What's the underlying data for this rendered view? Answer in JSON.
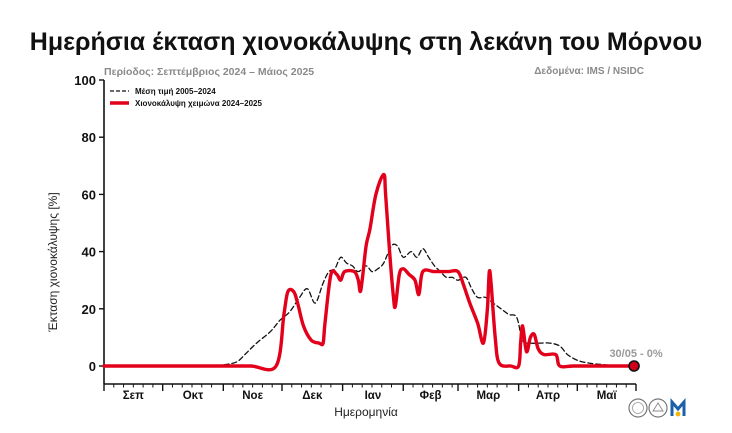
{
  "header": {
    "title": "Ημερήσια έκταση χιονοκάλυψης στη λεκάνη του Μόρνου",
    "period": "Περίοδος: Σεπτέμβριος 2024 – Μάιος 2025",
    "source": "Δεδομένα: IMS / NSIDC"
  },
  "chart_data": {
    "type": "line",
    "title": "Ημερήσια έκταση χιονοκάλυψης στη λεκάνη του Μόρνου",
    "xlabel": "Ημερομηνία",
    "ylabel": "Έκταση χιονοκάλυψης [%]",
    "ylim": [
      0,
      100
    ],
    "yticks": [
      0,
      20,
      40,
      60,
      80,
      100
    ],
    "x_unit": "day index from 1 Sep 2024",
    "xlim": [
      0,
      272
    ],
    "months": [
      {
        "label": "Σεπ",
        "start": 0,
        "end": 30
      },
      {
        "label": "Οκτ",
        "start": 30,
        "end": 61
      },
      {
        "label": "Νοε",
        "start": 61,
        "end": 91
      },
      {
        "label": "Δεκ",
        "start": 91,
        "end": 122
      },
      {
        "label": "Ιαν",
        "start": 122,
        "end": 153
      },
      {
        "label": "Φεβ",
        "start": 153,
        "end": 181
      },
      {
        "label": "Μαρ",
        "start": 181,
        "end": 212
      },
      {
        "label": "Απρ",
        "start": 212,
        "end": 242
      },
      {
        "label": "Μαϊ",
        "start": 242,
        "end": 272
      }
    ],
    "legend_position": "top-left",
    "grid": false,
    "series": [
      {
        "name": "Μέση τιμή 2005–2024",
        "color": "#111111",
        "style": "dashed",
        "points": [
          [
            0,
            0
          ],
          [
            25,
            0
          ],
          [
            40,
            0
          ],
          [
            55,
            0
          ],
          [
            62,
            0.5
          ],
          [
            68,
            1.5
          ],
          [
            72,
            4
          ],
          [
            78,
            8
          ],
          [
            85,
            12
          ],
          [
            90,
            16
          ],
          [
            95,
            19
          ],
          [
            100,
            24
          ],
          [
            104,
            27
          ],
          [
            108,
            22
          ],
          [
            112,
            29
          ],
          [
            115,
            33
          ],
          [
            118,
            34
          ],
          [
            121,
            38
          ],
          [
            124,
            36
          ],
          [
            127,
            35
          ],
          [
            130,
            33
          ],
          [
            134,
            35
          ],
          [
            137,
            33
          ],
          [
            140,
            34
          ],
          [
            143,
            36
          ],
          [
            147,
            42
          ],
          [
            150,
            42
          ],
          [
            153,
            38
          ],
          [
            157,
            40
          ],
          [
            160,
            38
          ],
          [
            163,
            41
          ],
          [
            166,
            38
          ],
          [
            169,
            35
          ],
          [
            172,
            33
          ],
          [
            175,
            31
          ],
          [
            178,
            31
          ],
          [
            181,
            30
          ],
          [
            185,
            31
          ],
          [
            188,
            27
          ],
          [
            191,
            24
          ],
          [
            195,
            24
          ],
          [
            199,
            22
          ],
          [
            203,
            20
          ],
          [
            207,
            18
          ],
          [
            211,
            17
          ],
          [
            214,
            9
          ],
          [
            218,
            8
          ],
          [
            223,
            8
          ],
          [
            228,
            8
          ],
          [
            233,
            7
          ],
          [
            237,
            4
          ],
          [
            242,
            2
          ],
          [
            248,
            1
          ],
          [
            255,
            0.5
          ],
          [
            262,
            0
          ],
          [
            270,
            0
          ]
        ]
      },
      {
        "name": "Χιονοκάλυψη χειμώνα 2024–2025",
        "color": "#e3001b",
        "style": "solid",
        "points": [
          [
            0,
            0
          ],
          [
            20,
            0
          ],
          [
            40,
            0
          ],
          [
            60,
            0
          ],
          [
            75,
            0
          ],
          [
            88,
            0
          ],
          [
            92,
            18
          ],
          [
            94,
            26
          ],
          [
            97,
            26
          ],
          [
            99,
            22
          ],
          [
            102,
            14
          ],
          [
            106,
            9
          ],
          [
            110,
            8
          ],
          [
            112,
            8
          ],
          [
            113,
            15
          ],
          [
            116,
            32
          ],
          [
            119,
            32
          ],
          [
            121,
            30
          ],
          [
            123,
            33
          ],
          [
            128,
            33
          ],
          [
            130,
            30
          ],
          [
            131,
            26
          ],
          [
            132,
            30
          ],
          [
            134,
            42
          ],
          [
            136,
            48
          ],
          [
            139,
            60
          ],
          [
            143,
            67
          ],
          [
            144,
            60
          ],
          [
            146,
            40
          ],
          [
            148,
            24
          ],
          [
            149,
            21
          ],
          [
            151,
            32
          ],
          [
            153,
            34
          ],
          [
            156,
            32
          ],
          [
            159,
            30
          ],
          [
            161,
            25
          ],
          [
            163,
            33
          ],
          [
            169,
            33
          ],
          [
            176,
            33
          ],
          [
            181,
            33
          ],
          [
            184,
            28
          ],
          [
            187,
            22
          ],
          [
            191,
            15
          ],
          [
            194,
            8
          ],
          [
            196,
            20
          ],
          [
            197,
            33
          ],
          [
            198,
            28
          ],
          [
            200,
            10
          ],
          [
            202,
            1
          ],
          [
            208,
            0
          ],
          [
            212,
            0
          ],
          [
            213,
            8
          ],
          [
            214,
            14
          ],
          [
            216,
            5
          ],
          [
            218,
            10
          ],
          [
            220,
            11
          ],
          [
            222,
            6
          ],
          [
            225,
            4
          ],
          [
            231,
            4
          ],
          [
            233,
            0
          ],
          [
            240,
            0
          ],
          [
            250,
            0
          ],
          [
            260,
            0
          ],
          [
            270,
            0
          ]
        ]
      }
    ],
    "end_marker": {
      "x": 271,
      "y": 0,
      "label": "30/05 - 0%"
    }
  }
}
